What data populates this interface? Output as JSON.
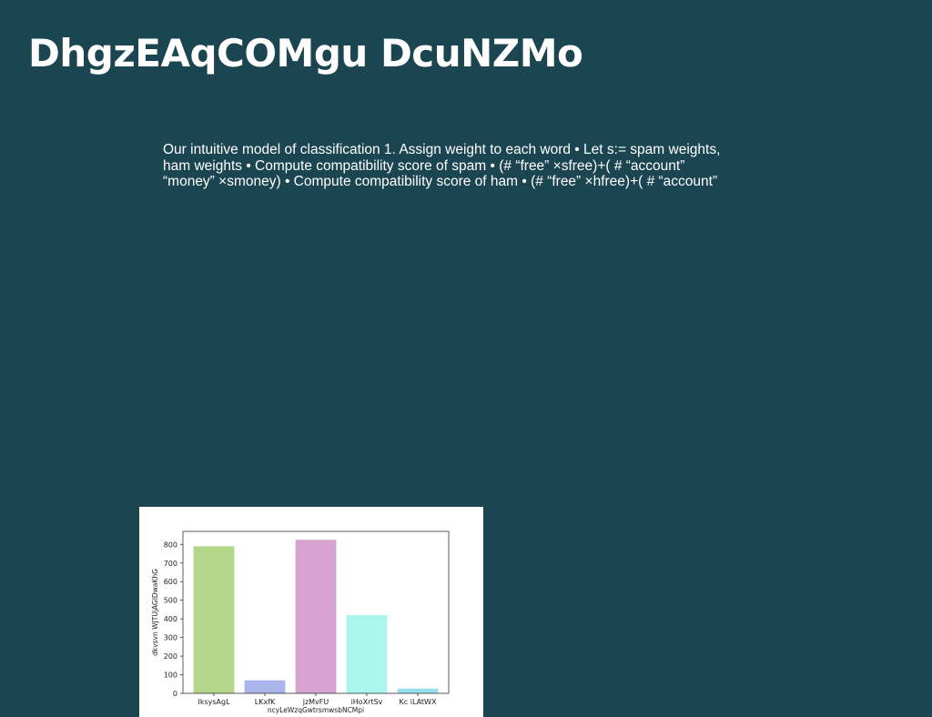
{
  "slide": {
    "title": "DhgzEAqCOMgu DcuNZMo",
    "body_lines": [
      "Our intuitive model of classification 1. Assign weight to each word • Let s:= spam weights,",
      "ham weights • Compute compatibility score of spam • (# “free” ×sfree)+( # “account”",
      "“money” ×smoney) • Compute compatibility score of ham • (# “free” ×hfree)+( # “account”"
    ]
  },
  "colors": {
    "background": "#1b4551",
    "text": "#ffffff",
    "chart_panel": "#ffffff"
  },
  "chart_data": {
    "type": "bar",
    "categories": [
      "IksysAgL",
      "LKxfK",
      "jzMvFU",
      "iHoXrtSv",
      "Kc iLAtWX"
    ],
    "values": [
      790,
      70,
      825,
      420,
      25
    ],
    "colors": [
      "#b2d68a",
      "#aab3ec",
      "#d6a2d0",
      "#aaf5ec",
      "#94e0ee"
    ],
    "title": "",
    "xlabel": "ncyLeWzqGwtrsmwsbNCMpi",
    "ylabel": "dkvsvn WJTUjAGIDwaKhG",
    "ylim": [
      0,
      870
    ],
    "yticks": [
      0,
      100,
      200,
      300,
      400,
      500,
      600,
      700,
      800
    ],
    "grid": false
  }
}
